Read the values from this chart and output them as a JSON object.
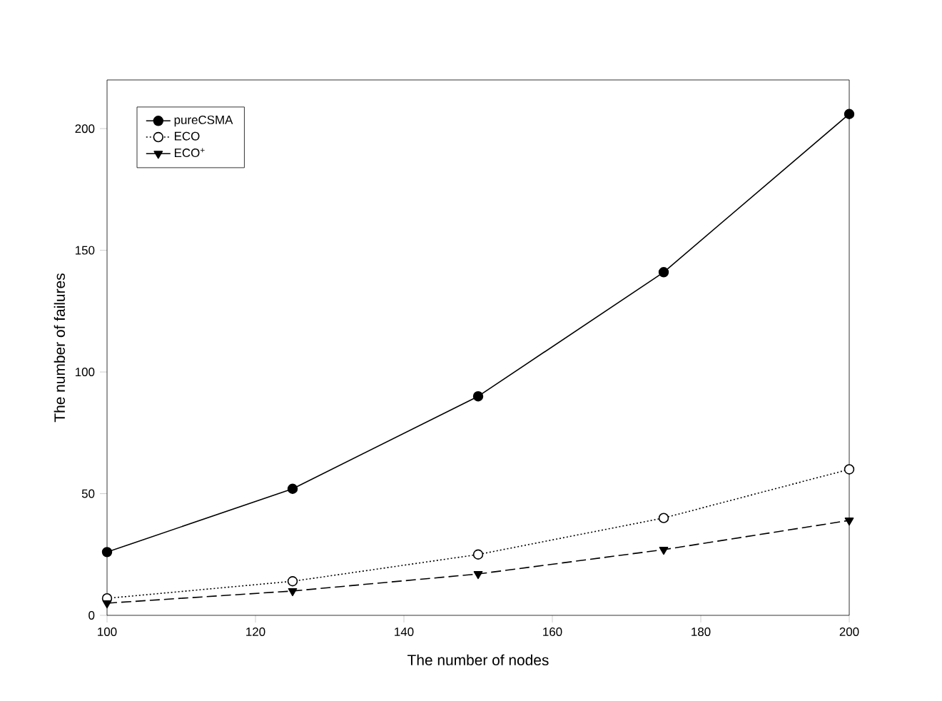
{
  "chart_data": {
    "type": "line",
    "xlabel": "The number of nodes",
    "ylabel": "The number of failures",
    "x": [
      100,
      125,
      150,
      175,
      200
    ],
    "series": [
      {
        "name": "pureCSMA",
        "color": "#000000",
        "marker": "circle",
        "line_style": "solid",
        "values": [
          26,
          52,
          90,
          141,
          206
        ]
      },
      {
        "name": "ECO",
        "color": "#000000",
        "marker": "circle",
        "line_style": "dotted",
        "values": [
          7,
          14,
          25,
          40,
          60
        ]
      },
      {
        "name": "ECO$^{+}$",
        "color": "#000000",
        "marker": "triangle",
        "line_style": "dashed",
        "values": [
          5,
          10,
          17,
          27,
          39
        ]
      }
    ],
    "xlim": [
      100,
      200
    ],
    "xticks": [
      100,
      120,
      140,
      160,
      180,
      200
    ],
    "ylim": [
      0,
      220
    ],
    "yticks": [
      0,
      50,
      100,
      150,
      200
    ],
    "grid": false,
    "legend": "top left"
  }
}
